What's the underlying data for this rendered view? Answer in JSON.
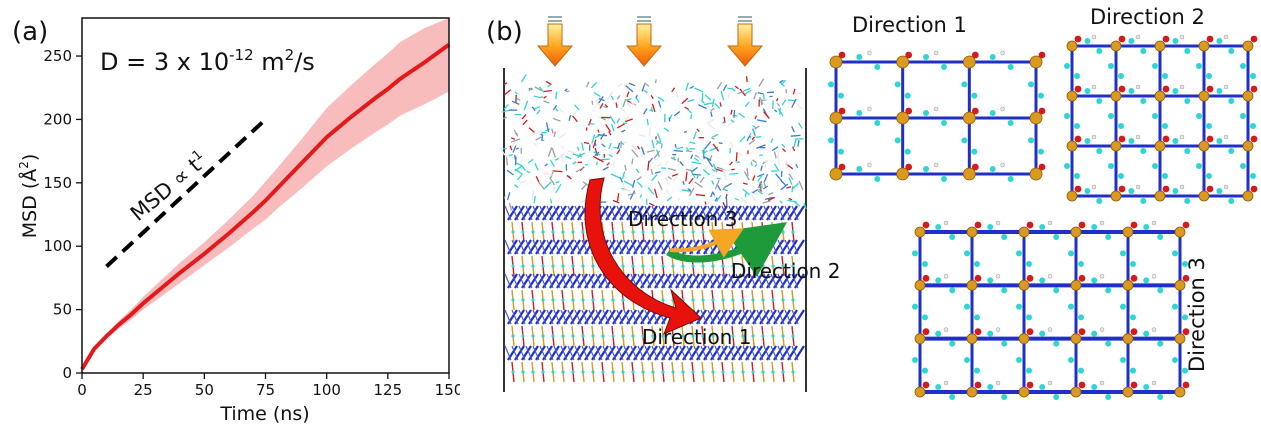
{
  "panel_a": {
    "label": "(a)",
    "annotation": "D = 3 x 10",
    "annotation_exp": "-12",
    "annotation_unit": " m",
    "annotation_unit_exp": "2",
    "annotation_tail": "/s",
    "slope_label": "MSD ∝ t",
    "slope_exp": "1",
    "chart_data": {
      "type": "line",
      "xlabel": "Time (ns)",
      "ylabel": "MSD (Å",
      "ylabel_exp": "2",
      "ylabel_tail": ")",
      "xlim": [
        0,
        150
      ],
      "ylim": [
        0,
        280
      ],
      "xticks": [
        0,
        25,
        50,
        75,
        100,
        125,
        150
      ],
      "yticks": [
        0,
        50,
        100,
        150,
        200,
        250
      ],
      "grid": false,
      "series": [
        {
          "color": "#e31a1c",
          "band_color": "#f7a6a6",
          "x": [
            0,
            5,
            10,
            15,
            20,
            25,
            30,
            40,
            50,
            60,
            70,
            75,
            80,
            90,
            100,
            110,
            120,
            125,
            130,
            140,
            150
          ],
          "y": [
            3,
            19,
            29,
            38,
            46,
            55,
            63,
            79,
            94,
            110,
            127,
            136,
            146,
            166,
            186,
            202,
            217,
            224,
            232,
            245,
            259
          ],
          "lower": [
            3,
            18,
            27,
            35,
            42,
            50,
            57,
            71,
            85,
            99,
            114,
            121,
            130,
            146,
            163,
            177,
            190,
            196,
            203,
            212,
            222
          ],
          "upper": [
            3,
            20,
            31,
            41,
            50,
            60,
            69,
            87,
            103,
            121,
            140,
            151,
            162,
            185,
            209,
            227,
            244,
            252,
            261,
            272,
            280
          ]
        }
      ],
      "slope_guide": {
        "x": [
          10,
          75
        ],
        "y": [
          84,
          200
        ],
        "color": "#000000"
      }
    }
  },
  "panel_b": {
    "label": "(b)",
    "direction1_label": "Direction 1",
    "direction2_label": "Direction 2",
    "direction3_label": "Direction 3",
    "view1_title": "Direction 1",
    "view2_title": "Direction 2",
    "view3_title": "Direction 3",
    "arrow_colors": {
      "red": "#e8120c",
      "green": "#1e9a3a",
      "orange": "#f5a623"
    },
    "atom_colors": {
      "metal": "#d99a1e",
      "nitrogen": "#1f2fc8",
      "carbon": "#2fd4d4",
      "oxygen": "#d41c1c",
      "hydrogen": "#e8e8e8"
    }
  }
}
